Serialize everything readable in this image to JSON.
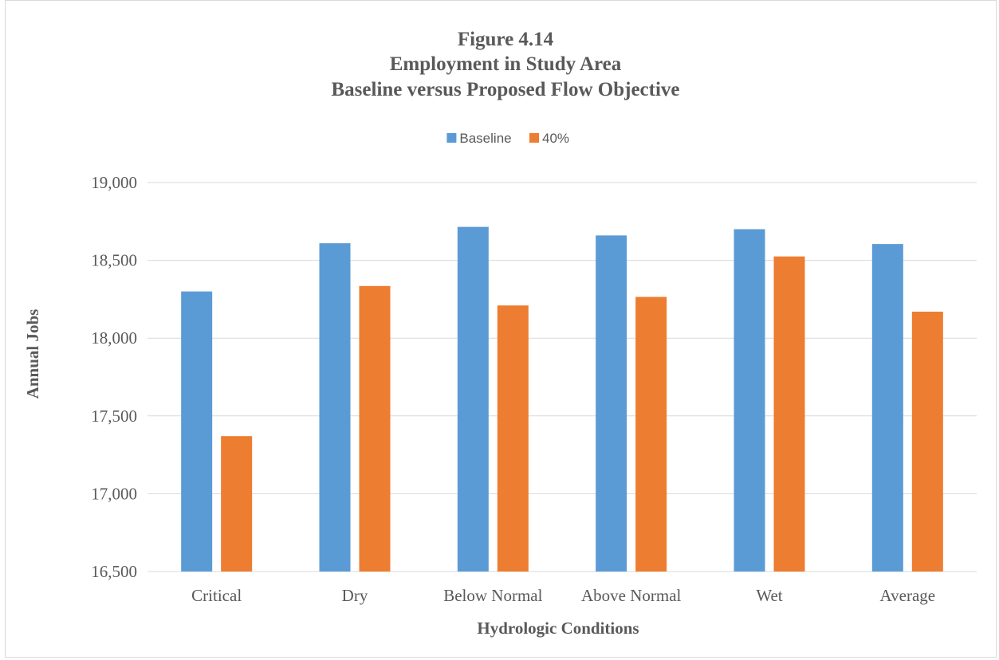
{
  "chart_data": {
    "type": "bar",
    "title_lines": [
      "Figure 4.14",
      "Employment in Study Area",
      "Baseline versus Proposed Flow Objective"
    ],
    "categories": [
      "Critical",
      "Dry",
      "Below Normal",
      "Above Normal",
      "Wet",
      "Average"
    ],
    "series": [
      {
        "name": "Baseline",
        "color": "#5b9bd5",
        "values": [
          18300,
          18610,
          18715,
          18660,
          18700,
          18605
        ]
      },
      {
        "name": "40%",
        "color": "#ed7d31",
        "values": [
          17370,
          18335,
          18210,
          18265,
          18525,
          18170
        ]
      }
    ],
    "xlabel": "Hydrologic Conditions",
    "ylabel": "Annual Jobs",
    "ylim": [
      16500,
      19000
    ],
    "yticks": [
      16500,
      17000,
      17500,
      18000,
      18500,
      19000
    ],
    "ytick_labels": [
      "16,500",
      "17,000",
      "17,500",
      "18,000",
      "18,500",
      "19,000"
    ],
    "grid": true,
    "legend_position": "top-center"
  }
}
